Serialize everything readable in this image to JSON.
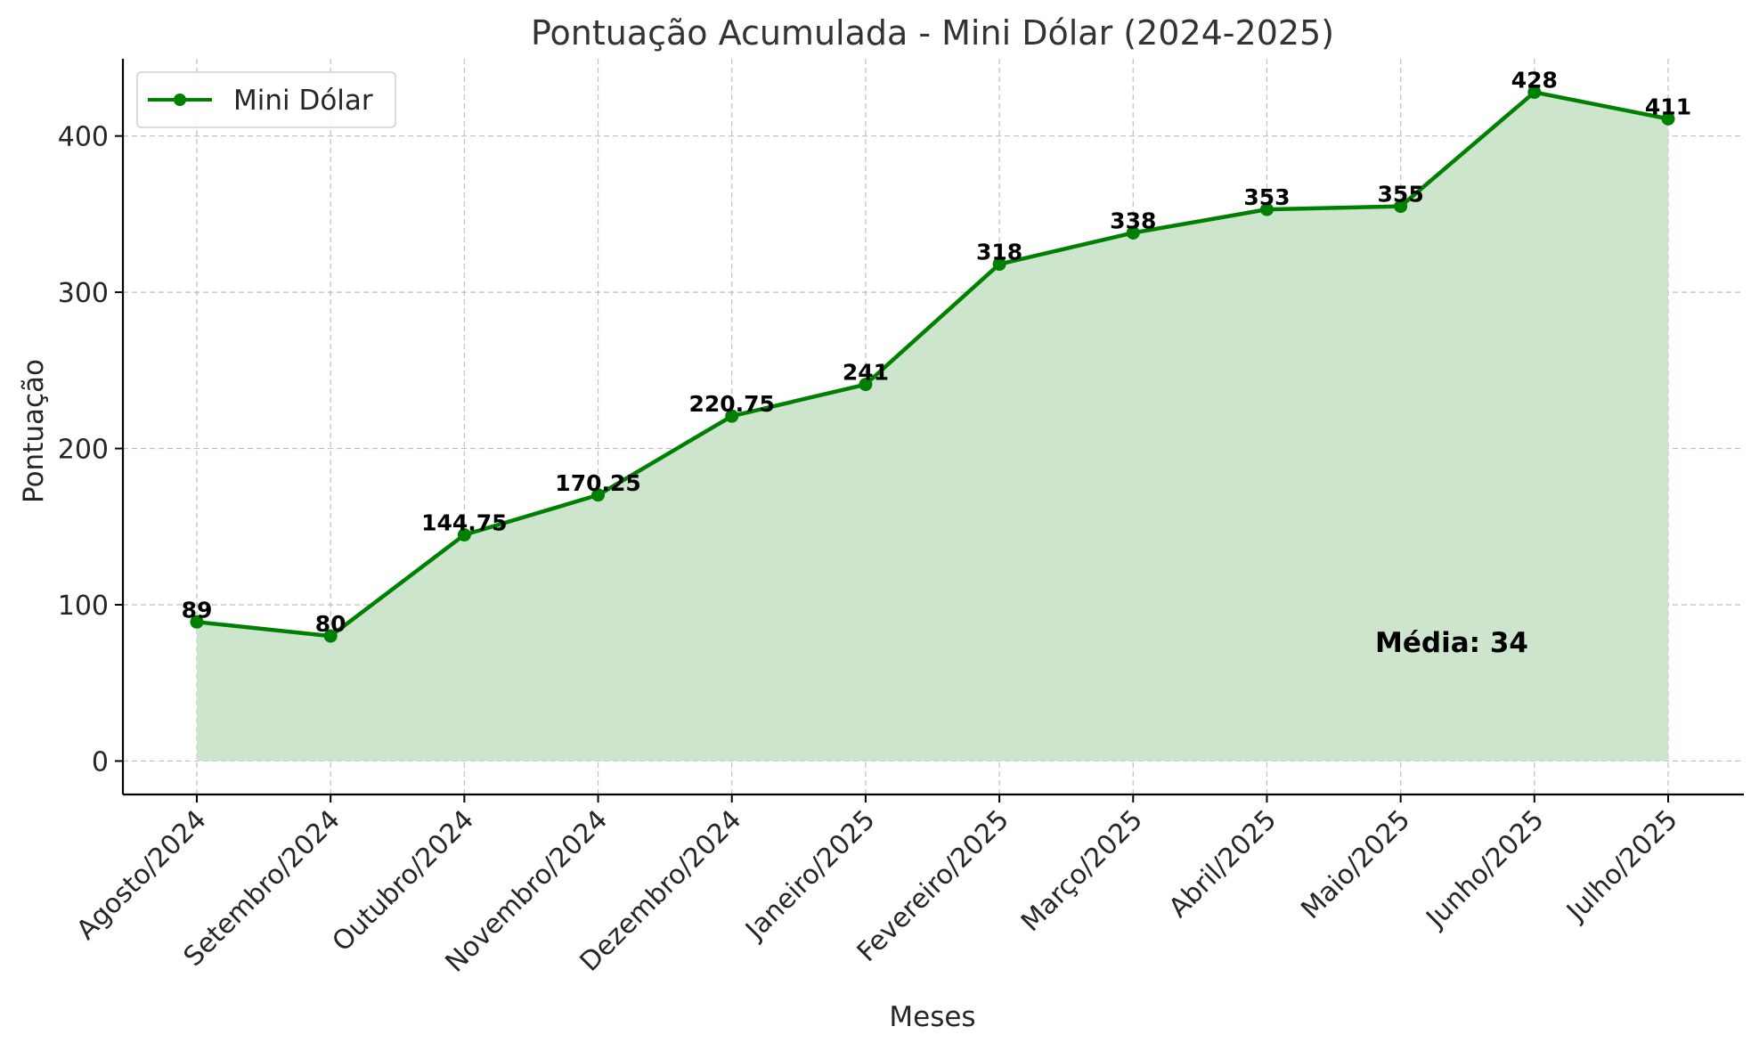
{
  "chart_data": {
    "type": "line",
    "title": "Pontuação Acumulada - Mini Dólar (2024-2025)",
    "xlabel": "Meses",
    "ylabel": "Pontuação",
    "categories": [
      "Agosto/2024",
      "Setembro/2024",
      "Outubro/2024",
      "Novembro/2024",
      "Dezembro/2024",
      "Janeiro/2025",
      "Fevereiro/2025",
      "Março/2025",
      "Abril/2025",
      "Maio/2025",
      "Junho/2025",
      "Julho/2025"
    ],
    "series": [
      {
        "name": "Mini Dólar",
        "values": [
          89,
          80,
          144.75,
          170.25,
          220.75,
          241,
          318,
          338,
          353,
          355,
          428,
          411
        ],
        "data_labels": [
          "89",
          "80",
          "144.75",
          "170.25",
          "220.75",
          "241",
          "318",
          "338",
          "353",
          "355",
          "428",
          "411"
        ],
        "color": "#008000",
        "fill_color": "#cce5cc",
        "marker": "circle",
        "area_fill": true
      }
    ],
    "ylim": [
      -21.4,
      449.4
    ],
    "yticks": [
      0,
      100,
      200,
      300,
      400
    ],
    "ytick_labels": [
      "0",
      "100",
      "200",
      "300",
      "400"
    ],
    "grid": true,
    "legend": {
      "position": "top-left",
      "entries": [
        "Mini Dólar"
      ]
    },
    "annotation": {
      "text": "Média: 34"
    },
    "colors": {
      "line": "#008000",
      "fill": "#cce5cc",
      "grid": "#b0b0b0",
      "axis": "#000000",
      "text": "#262626"
    }
  }
}
